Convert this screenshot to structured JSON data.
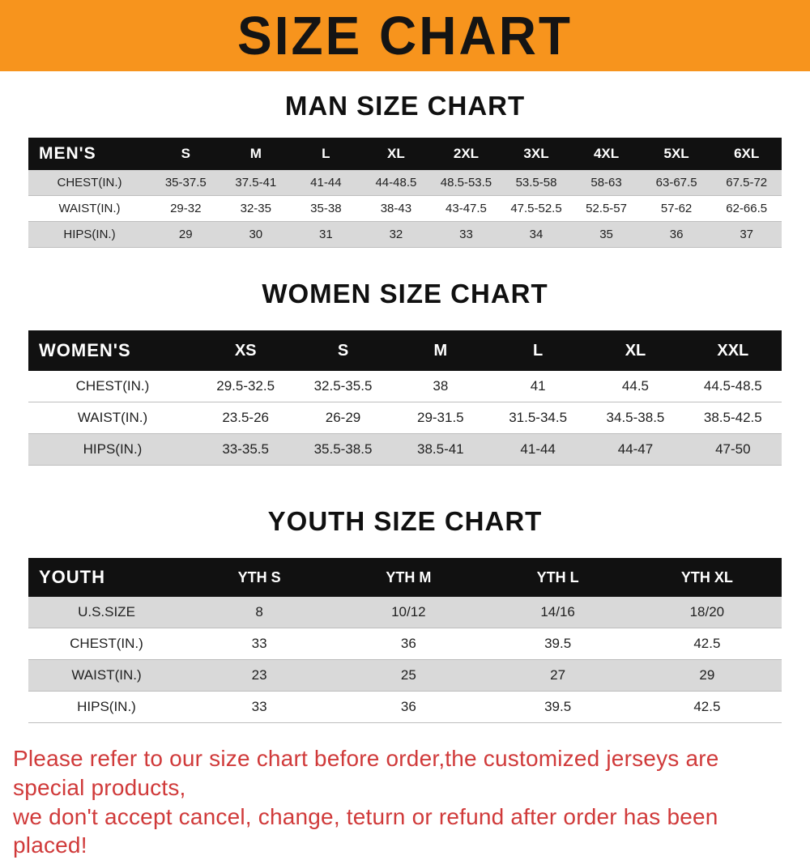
{
  "banner": {
    "title": "SIZE CHART"
  },
  "sections": [
    {
      "heading": "MAN SIZE CHART",
      "table": {
        "header": [
          "MEN'S",
          "S",
          "M",
          "L",
          "XL",
          "2XL",
          "3XL",
          "4XL",
          "5XL",
          "6XL"
        ],
        "rows": [
          [
            "CHEST(IN.)",
            "35-37.5",
            "37.5-41",
            "41-44",
            "44-48.5",
            "48.5-53.5",
            "53.5-58",
            "58-63",
            "63-67.5",
            "67.5-72"
          ],
          [
            "WAIST(IN.)",
            "29-32",
            "32-35",
            "35-38",
            "38-43",
            "43-47.5",
            "47.5-52.5",
            "52.5-57",
            "57-62",
            "62-66.5"
          ],
          [
            "HIPS(IN.)",
            "29",
            "30",
            "31",
            "32",
            "33",
            "34",
            "35",
            "36",
            "37"
          ]
        ]
      }
    },
    {
      "heading": "WOMEN SIZE CHART",
      "table": {
        "header": [
          "WOMEN'S",
          "XS",
          "S",
          "M",
          "L",
          "XL",
          "XXL"
        ],
        "rows": [
          [
            "CHEST(IN.)",
            "29.5-32.5",
            "32.5-35.5",
            "38",
            "41",
            "44.5",
            "44.5-48.5"
          ],
          [
            "WAIST(IN.)",
            "23.5-26",
            "26-29",
            "29-31.5",
            "31.5-34.5",
            "34.5-38.5",
            "38.5-42.5"
          ],
          [
            "HIPS(IN.)",
            "33-35.5",
            "35.5-38.5",
            "38.5-41",
            "41-44",
            "44-47",
            "47-50"
          ]
        ]
      }
    },
    {
      "heading": "YOUTH SIZE CHART",
      "table": {
        "header": [
          "YOUTH",
          "YTH S",
          "YTH M",
          "YTH L",
          "YTH XL"
        ],
        "rows": [
          [
            "U.S.SIZE",
            "8",
            "10/12",
            "14/16",
            "18/20"
          ],
          [
            "CHEST(IN.)",
            "33",
            "36",
            "39.5",
            "42.5"
          ],
          [
            "WAIST(IN.)",
            "23",
            "25",
            "27",
            "29"
          ],
          [
            "HIPS(IN.)",
            "33",
            "36",
            "39.5",
            "42.5"
          ]
        ]
      }
    }
  ],
  "footer": {
    "line1": "Please refer to our size chart before order,the customized jerseys are special products,",
    "line2": "we don't accept cancel, change, teturn or refund after order has been placed!"
  },
  "colors": {
    "banner_bg": "#f7941d",
    "header_row_bg": "#111111",
    "shaded_row_bg": "#d9d9d9",
    "footer_text": "#d03a3a"
  }
}
